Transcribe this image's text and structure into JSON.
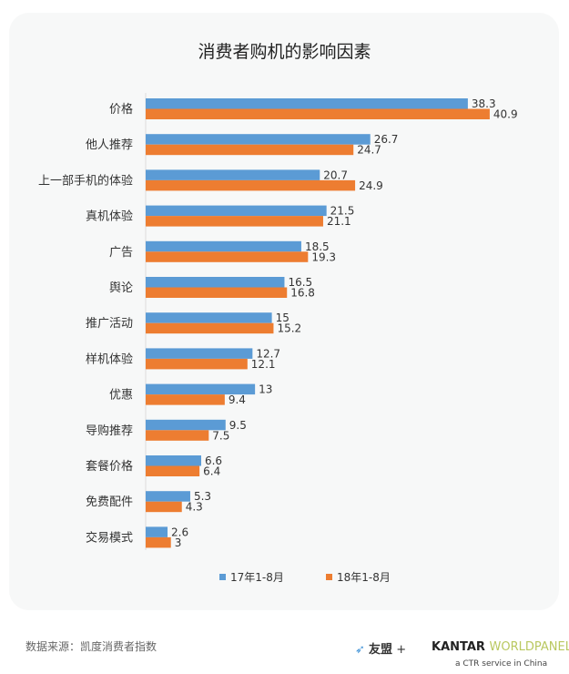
{
  "chart_data": {
    "type": "bar",
    "orientation": "horizontal",
    "title": "消费者购机的影响因素",
    "categories": [
      "价格",
      "他人推荐",
      "上一部手机的体验",
      "真机体验",
      "广告",
      "舆论",
      "推广活动",
      "样机体验",
      "优惠",
      "导购推荐",
      "套餐价格",
      "免费配件",
      "交易模式"
    ],
    "series": [
      {
        "name": "17年1-8月",
        "color": "#5b9bd5",
        "values": [
          38.3,
          26.7,
          20.7,
          21.5,
          18.5,
          16.5,
          15,
          12.7,
          13,
          9.5,
          6.6,
          5.3,
          2.6
        ]
      },
      {
        "name": "18年1-8月",
        "color": "#ed7d31",
        "values": [
          40.9,
          24.7,
          24.9,
          21.1,
          19.3,
          16.8,
          15.2,
          12.1,
          9.4,
          7.5,
          6.4,
          4.3,
          3
        ]
      }
    ],
    "data_labels": true,
    "grid": false,
    "legend_position": "bottom"
  },
  "footer": {
    "source": "数据来源：凯度消费者指数",
    "logo1": "友盟",
    "plus": "+",
    "logo2a": "KANTAR",
    "logo2b": "WORLDPANEL",
    "tagline": "a CTR service in China"
  }
}
